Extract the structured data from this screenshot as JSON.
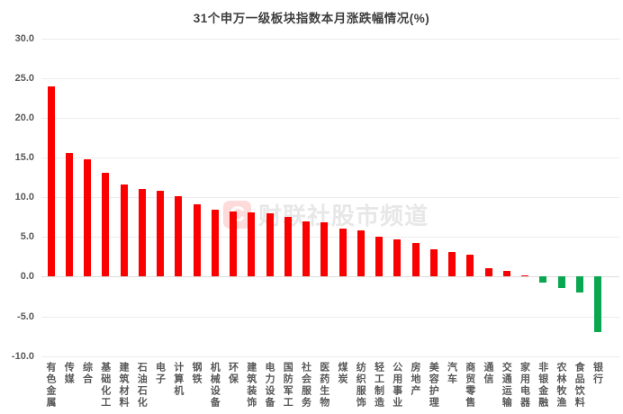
{
  "title": "31个申万一级板块指数本月涨跌幅情况(%)",
  "watermark": {
    "logo_letter": "C",
    "text": "财联社股市频道"
  },
  "colors": {
    "positive_bar": "#fb0000",
    "negative_bar": "#0aa750",
    "title_text": "#3f3f3f",
    "axis_label": "#595959",
    "gridline": "#ececec",
    "zero_line": "#dcdcdc",
    "background": "#ffffff"
  },
  "chart_data": {
    "type": "bar",
    "title": "31个申万一级板块指数本月涨跌幅情况(%)",
    "xlabel": "",
    "ylabel": "",
    "ylim": [
      -10,
      30
    ],
    "ytick_step": 5,
    "yticks": [
      "30.0",
      "25.0",
      "20.0",
      "15.0",
      "10.0",
      "5.0",
      "0.0",
      "-5.0",
      "-10.0"
    ],
    "grid": "horizontal",
    "legend_position": "none",
    "color_rule": "positive values red, negative values green",
    "categories": [
      "有色金属",
      "传媒",
      "综合",
      "基础化工",
      "建筑材料",
      "石油石化",
      "电子",
      "计算机",
      "钢铁",
      "机械设备",
      "环保",
      "建筑装饰",
      "电力设备",
      "国防军工",
      "社会服务",
      "医药生物",
      "煤炭",
      "纺织服饰",
      "轻工制造",
      "公用事业",
      "房地产",
      "美容护理",
      "汽车",
      "商贸零售",
      "通信",
      "交通运输",
      "家用电器",
      "非银金融",
      "农林牧渔",
      "食品饮料",
      "银行"
    ],
    "values": [
      24.0,
      15.6,
      14.8,
      13.1,
      11.6,
      11.1,
      10.8,
      10.1,
      9.1,
      8.4,
      8.2,
      8.1,
      8.0,
      7.5,
      7.0,
      6.9,
      6.1,
      5.8,
      5.1,
      4.7,
      4.3,
      3.4,
      3.1,
      2.8,
      1.1,
      0.7,
      0.2,
      -0.8,
      -1.4,
      -2.0,
      -7.0
    ]
  }
}
